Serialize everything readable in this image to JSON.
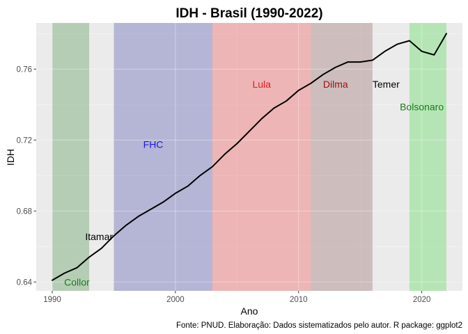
{
  "chart_data": {
    "type": "line",
    "title": "IDH - Brasil (1990-2022)",
    "xlabel": "Ano",
    "ylabel": "IDH",
    "caption": "Fonte: PNUD. Elaboração: Dados sistematizados pelo autor. R package: ggplot2",
    "xlim": [
      1988.7,
      2023.3
    ],
    "ylim": [
      0.635,
      0.786
    ],
    "x_ticks": [
      1990,
      2000,
      2010,
      2020
    ],
    "y_ticks": [
      0.64,
      0.68,
      0.72,
      0.76
    ],
    "y_tick_labels": [
      "0.64",
      "0.68",
      "0.72",
      "0.76"
    ],
    "grid": true,
    "background": "#EBEBEB",
    "series": [
      {
        "color": "#000000",
        "x": [
          1990,
          1991,
          1992,
          1993,
          1994,
          1995,
          1996,
          1997,
          1998,
          1999,
          2000,
          2001,
          2002,
          2003,
          2004,
          2005,
          2006,
          2007,
          2008,
          2009,
          2010,
          2011,
          2012,
          2013,
          2014,
          2015,
          2016,
          2017,
          2018,
          2019,
          2020,
          2021,
          2022
        ],
        "values": [
          0.641,
          0.645,
          0.648,
          0.654,
          0.659,
          0.666,
          0.672,
          0.677,
          0.681,
          0.685,
          0.69,
          0.694,
          0.7,
          0.705,
          0.712,
          0.718,
          0.725,
          0.732,
          0.738,
          0.742,
          0.748,
          0.752,
          0.757,
          0.761,
          0.764,
          0.764,
          0.765,
          0.77,
          0.774,
          0.776,
          0.77,
          0.768,
          0.78
        ]
      }
    ],
    "periods": [
      {
        "label": "Collor",
        "start": 1990,
        "end": 1993,
        "fill": "#7FAF7F",
        "opacity": 0.5,
        "text_color": "#1E7A1E",
        "label_x": 1992.0,
        "label_y": 0.64
      },
      {
        "label": "Itamar",
        "start": 1993,
        "end": 1995,
        "fill": "#EBEBEB",
        "opacity": 0.0,
        "text_color": "#000000",
        "label_x": 1993.8,
        "label_y": 0.6655
      },
      {
        "label": "FHC",
        "start": 1995,
        "end": 2003,
        "fill": "#7F7FBF",
        "opacity": 0.5,
        "text_color": "#1A1AE6",
        "label_x": 1998.2,
        "label_y": 0.7175
      },
      {
        "label": "Lula",
        "start": 2003,
        "end": 2011,
        "fill": "#F08080",
        "opacity": 0.5,
        "text_color": "#E61A1A",
        "label_x": 2007.0,
        "label_y": 0.7515
      },
      {
        "label": "Dilma",
        "start": 2011,
        "end": 2016,
        "fill": "#B08F8F",
        "opacity": 0.5,
        "text_color": "#A01010",
        "label_x": 2013.0,
        "label_y": 0.7515
      },
      {
        "label": "Temer",
        "start": 2016,
        "end": 2019,
        "fill": "#EBEBEB",
        "opacity": 0.0,
        "text_color": "#000000",
        "label_x": 2017.1,
        "label_y": 0.7515
      },
      {
        "label": "Bolsonaro",
        "start": 2019,
        "end": 2022,
        "fill": "#7FE07F",
        "opacity": 0.5,
        "text_color": "#1E7A1E",
        "label_x": 2020.0,
        "label_y": 0.7388
      }
    ]
  }
}
